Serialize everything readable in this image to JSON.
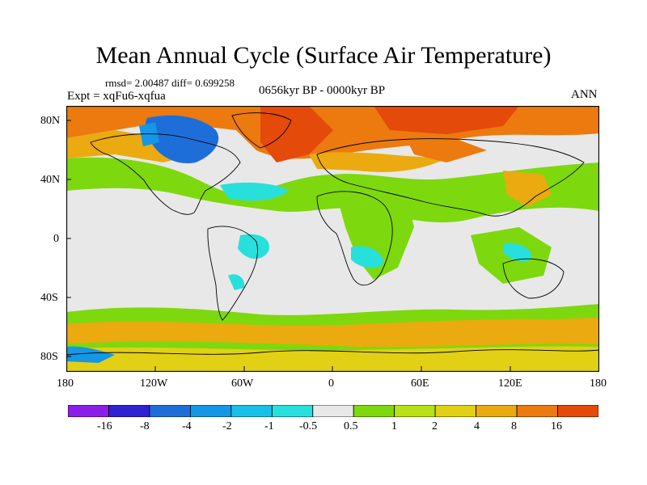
{
  "title": "Mean Annual Cycle (Surface Air Temperature)",
  "stats": "rmsd= 2.00487 diff= 0.699258",
  "experiment": "Expt = xqFu6-xqfua",
  "period": "0656kyr BP - 0000kyr BP",
  "season": "ANN",
  "axes": {
    "y_ticks": [
      "80N",
      "40N",
      "0",
      "40S",
      "80S"
    ],
    "x_ticks": [
      "180",
      "120W",
      "60W",
      "0",
      "60E",
      "120E",
      "180"
    ]
  },
  "colorbar": {
    "colors": [
      "#8b1ee8",
      "#2e22d2",
      "#1e6eda",
      "#1497e6",
      "#16c0e8",
      "#27e0dc",
      "#e8e8e8",
      "#7ed80e",
      "#b8e213",
      "#e2d015",
      "#eaaa10",
      "#ec7a0e",
      "#e44a0a"
    ],
    "labels": [
      "-16",
      "-8",
      "-4",
      "-2",
      "-1",
      "-0.5",
      "0.5",
      "1",
      "2",
      "4",
      "8",
      "16"
    ]
  },
  "legend_colors": {
    "neutral": "#e8e8e8",
    "cool_strong": "#1e6eda",
    "cool_weak": "#27e0dc",
    "warm_weak": "#7ed80e",
    "warm_mid": "#eaaa10",
    "warm_strong": "#ec7a0e"
  }
}
